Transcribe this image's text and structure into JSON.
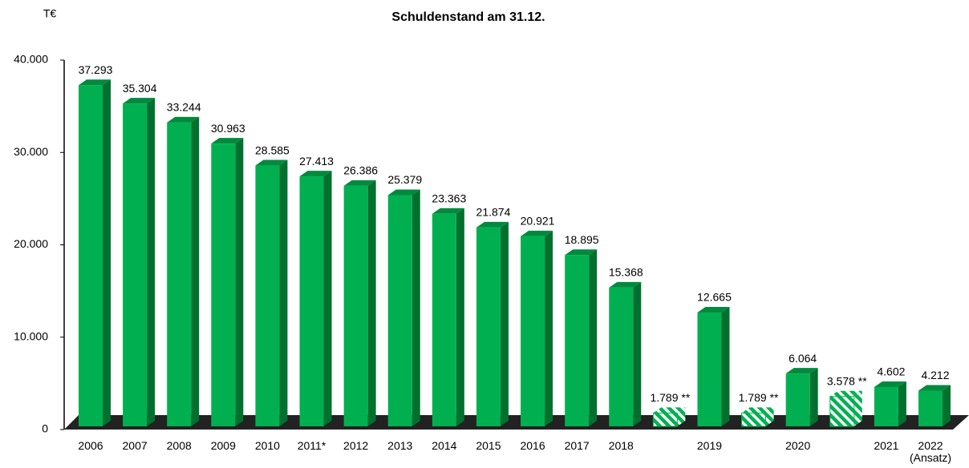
{
  "chart_data": {
    "type": "bar3d",
    "title": "Schuldenstand am 31.12.",
    "y_label": "T€",
    "categories": [
      "2006",
      "2007",
      "2008",
      "2009",
      "2010",
      "2011*",
      "2012",
      "2013",
      "2014",
      "2015",
      "2016",
      "2017",
      "2018",
      null,
      "2019",
      null,
      "2020",
      null,
      "2021",
      "2022\n(Ansatz)"
    ],
    "values": [
      37293,
      35304,
      33244,
      30963,
      28585,
      27413,
      26386,
      25379,
      23363,
      21874,
      20921,
      18895,
      15368,
      1789,
      12665,
      1789,
      6064,
      3578,
      4602,
      4212
    ],
    "value_labels": [
      "37.293",
      "35.304",
      "33.244",
      "30.963",
      "28.585",
      "27.413",
      "26.386",
      "25.379",
      "23.363",
      "21.874",
      "20.921",
      "18.895",
      "15.368",
      "1.789 **",
      "12.665",
      "1.789 **",
      "6.064",
      "3.578 **",
      "4.602",
      "4.212"
    ],
    "hatched": [
      false,
      false,
      false,
      false,
      false,
      false,
      false,
      false,
      false,
      false,
      false,
      false,
      false,
      true,
      false,
      true,
      false,
      true,
      false,
      false
    ],
    "color": "#00b050",
    "ylim": [
      0,
      40000
    ],
    "yticks": [
      0,
      {
        "value": 10000,
        "label": "10.000"
      },
      {
        "value": 20000,
        "label": "20.000"
      },
      {
        "value": 30000,
        "label": "30.000"
      },
      {
        "value": 40000,
        "label": "40.000"
      }
    ]
  }
}
